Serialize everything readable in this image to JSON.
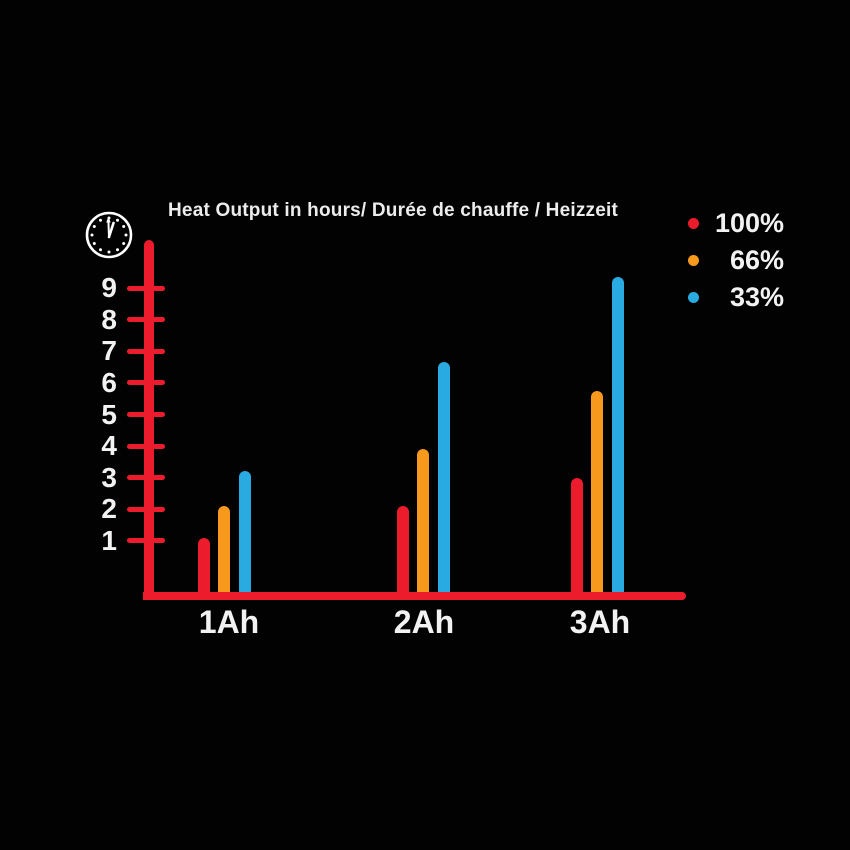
{
  "title": "Heat Output in hours/ Durée de chauffe / Heizzeit",
  "colors": {
    "background": "#020202",
    "axis_red": "#ed1c2c",
    "series_red": "#ed1c2c",
    "series_orange": "#f6991d",
    "series_blue": "#29abe2",
    "text": "#f2f2f2"
  },
  "icons": {
    "clock": "clock-icon"
  },
  "legend": {
    "items": [
      {
        "label": "100%",
        "color": "#ed1c2c"
      },
      {
        "label": "66%",
        "color": "#f6991d"
      },
      {
        "label": "33%",
        "color": "#29abe2"
      }
    ]
  },
  "chart_data": {
    "type": "bar",
    "title": "Heat Output in hours/ Durée de chauffe / Heizzeit",
    "categories": [
      "1Ah",
      "2Ah",
      "3Ah"
    ],
    "series": [
      {
        "name": "100%",
        "color": "#ed1c2c",
        "values": [
          1.1,
          2.1,
          3.0
        ]
      },
      {
        "name": "66%",
        "color": "#f6991d",
        "values": [
          2.1,
          3.9,
          5.75
        ]
      },
      {
        "name": "33%",
        "color": "#29abe2",
        "values": [
          3.2,
          6.65,
          9.35
        ]
      }
    ],
    "xlabel": "",
    "ylabel": "hours",
    "y_ticks": [
      1,
      2,
      3,
      4,
      5,
      6,
      7,
      8,
      9
    ],
    "ylim": [
      0,
      10
    ],
    "grid": false,
    "legend_position": "top-right"
  }
}
